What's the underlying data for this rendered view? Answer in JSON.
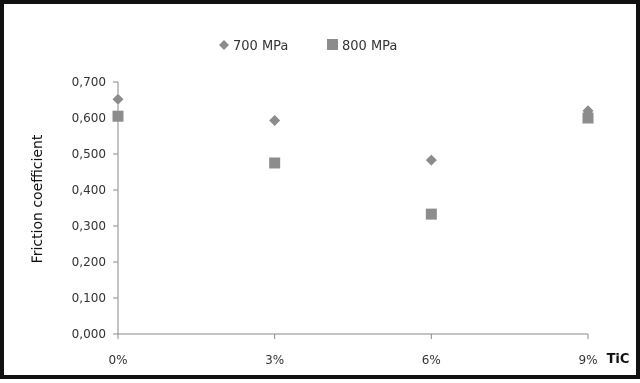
{
  "chart_data": {
    "type": "scatter",
    "title": "",
    "xlabel": "TiC",
    "ylabel": "Friction coefficient",
    "categories": [
      "0%",
      "3%",
      "6%",
      "9%"
    ],
    "y_ticks": [
      "0,000",
      "0,100",
      "0,200",
      "0,300",
      "0,400",
      "0,500",
      "0,600",
      "0,700"
    ],
    "ylim": [
      0,
      0.7
    ],
    "grid": false,
    "legend_position": "top",
    "series": [
      {
        "name": "700 MPa",
        "marker": "diamond",
        "color": "#8c8c8c",
        "values": [
          0.652,
          0.593,
          0.483,
          0.62
        ]
      },
      {
        "name": "800 MPa",
        "marker": "square",
        "color": "#8c8c8c",
        "values": [
          0.605,
          0.475,
          0.333,
          0.6
        ]
      }
    ]
  }
}
